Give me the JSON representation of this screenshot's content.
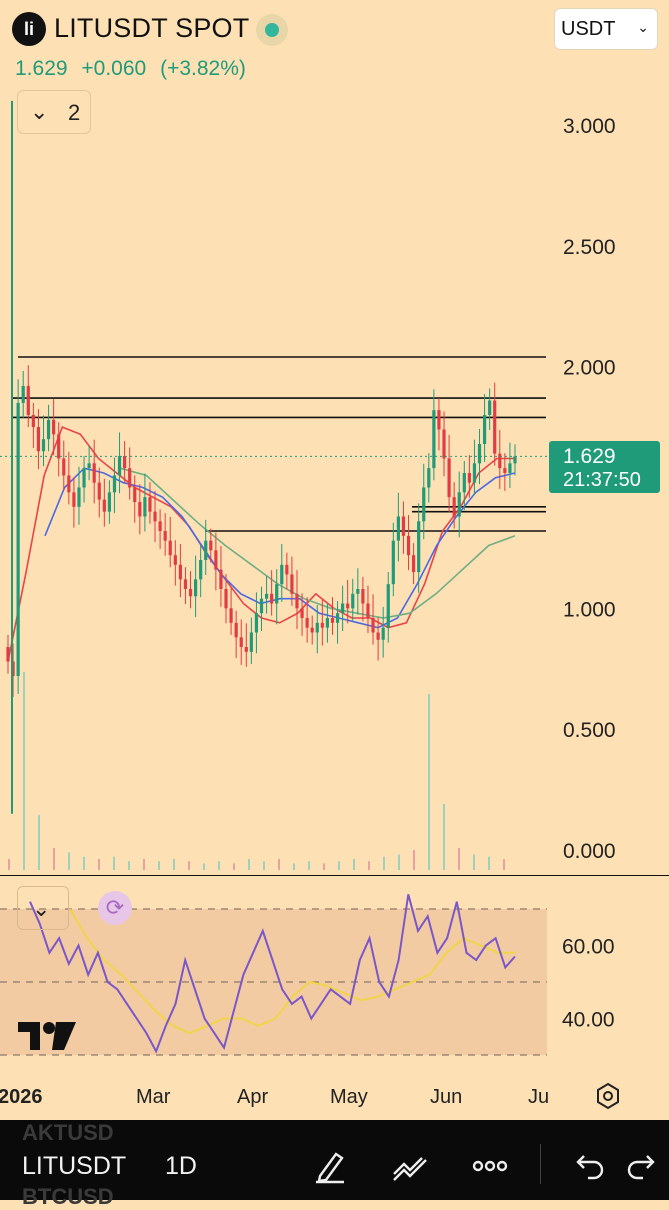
{
  "header": {
    "logo_glyph": "li",
    "symbol_title": "LITUSDT SPOT",
    "last_price": "1.629",
    "change_abs": "+0.060",
    "change_pct": "(+3.82%)",
    "currency": "USDT",
    "indicator_count": "2"
  },
  "price_tag": {
    "price": "1.629",
    "countdown": "21:37:50"
  },
  "colors": {
    "background": "#fde1b4",
    "up": "#1f9b7a",
    "down": "#e23b43",
    "ma_red": "#e8434a",
    "ma_blue": "#4a6ae6",
    "ma_green": "#6fae84",
    "rsi_line": "#7a57c9",
    "rsi_ma": "#f0d44a",
    "rsi_band": "#f2cba2"
  },
  "chart_data": [
    {
      "type": "candlestick",
      "title": "LITUSDT SPOT 1D",
      "y_ticks": [
        "3.000",
        "2.500",
        "2.000",
        "1.000",
        "0.500",
        "0.000"
      ],
      "x_ticks": [
        "2026",
        "Mar",
        "Apr",
        "May",
        "Jun",
        "Ju"
      ],
      "ylim": [
        0,
        3.25
      ],
      "series": [
        {
          "name": "close",
          "values": [
            0.78,
            0.72,
            1.85,
            1.92,
            1.8,
            1.75,
            1.65,
            1.7,
            1.78,
            1.72,
            1.62,
            1.55,
            1.48,
            1.42,
            1.5,
            1.58,
            1.6,
            1.52,
            1.45,
            1.4,
            1.48,
            1.55,
            1.63,
            1.58,
            1.5,
            1.44,
            1.38,
            1.46,
            1.4,
            1.36,
            1.32,
            1.28,
            1.22,
            1.18,
            1.12,
            1.08,
            1.05,
            1.12,
            1.2,
            1.28,
            1.24,
            1.16,
            1.08,
            1.0,
            0.94,
            0.88,
            0.84,
            0.82,
            0.9,
            0.98,
            1.04,
            1.06,
            1.02,
            1.1,
            1.18,
            1.14,
            1.06,
            1.0,
            0.96,
            0.92,
            0.9,
            0.94,
            0.92,
            0.96,
            0.94,
            0.98,
            1.02,
            1.0,
            1.06,
            1.08,
            1.02,
            0.96,
            0.9,
            0.87,
            0.92,
            1.1,
            1.28,
            1.38,
            1.3,
            1.22,
            1.15,
            1.36,
            1.5,
            1.58,
            1.82,
            1.74,
            1.62,
            1.46,
            1.38,
            1.48,
            1.56,
            1.52,
            1.6,
            1.68,
            1.8,
            1.86,
            1.64,
            1.58,
            1.56,
            1.6,
            1.629
          ]
        },
        {
          "name": "MA fast",
          "values": [
            0.78,
            1.15,
            1.55,
            1.75,
            1.72,
            1.62,
            1.56,
            1.5,
            1.46,
            1.42,
            1.34,
            1.22,
            1.12,
            1.02,
            0.96,
            0.94,
            0.98,
            1.06,
            1.0,
            0.96,
            0.96,
            0.92,
            0.94,
            1.1,
            1.32,
            1.42,
            1.56,
            1.62,
            1.62
          ]
        },
        {
          "name": "MA mid",
          "values": [
            1.3,
            1.5,
            1.58,
            1.56,
            1.52,
            1.5,
            1.46,
            1.38,
            1.26,
            1.14,
            1.06,
            1.02,
            1.04,
            1.04,
            0.98,
            0.96,
            0.94,
            0.92,
            0.96,
            1.1,
            1.26,
            1.38,
            1.48,
            1.54,
            1.56
          ]
        },
        {
          "name": "MA slow",
          "values": [
            1.58,
            1.55,
            1.45,
            1.35,
            1.26,
            1.18,
            1.1,
            1.04,
            1.0,
            0.98,
            0.96,
            0.98,
            1.06,
            1.16,
            1.26,
            1.3
          ]
        }
      ],
      "volume": [
        0.05,
        0.9,
        0.25,
        0.1,
        0.08,
        0.06,
        0.05,
        0.06,
        0.04,
        0.05,
        0.04,
        0.05,
        0.04,
        0.03,
        0.04,
        0.03,
        0.05,
        0.04,
        0.05,
        0.03,
        0.04,
        0.03,
        0.04,
        0.05,
        0.04,
        0.06,
        0.07,
        0.09,
        0.8,
        0.3,
        0.1,
        0.07,
        0.06,
        0.05
      ],
      "horizontal_levels": [
        2.04,
        1.87,
        1.79,
        1.42,
        1.4,
        1.32
      ],
      "current_price": 1.629
    },
    {
      "type": "line",
      "y_ticks": [
        "60.00",
        "40.00"
      ],
      "bands": [
        70,
        50,
        30
      ],
      "ylim": [
        25,
        80
      ],
      "series": [
        {
          "name": "RSI",
          "values": [
            72,
            66,
            58,
            62,
            55,
            60,
            52,
            58,
            50,
            48,
            44,
            40,
            36,
            31,
            38,
            44,
            56,
            48,
            40,
            36,
            32,
            42,
            52,
            58,
            64,
            56,
            48,
            44,
            46,
            40,
            44,
            48,
            46,
            44,
            56,
            62,
            50,
            46,
            56,
            74,
            64,
            68,
            58,
            62,
            72,
            58,
            56,
            60,
            62,
            54,
            57
          ]
        },
        {
          "name": "RSI MA",
          "values": [
            70,
            62,
            56,
            52,
            47,
            42,
            38,
            36,
            38,
            40,
            40,
            38,
            40,
            46,
            50,
            49,
            47,
            45,
            46,
            48,
            50,
            52,
            58,
            62,
            60,
            58,
            58
          ]
        }
      ]
    }
  ]
}
